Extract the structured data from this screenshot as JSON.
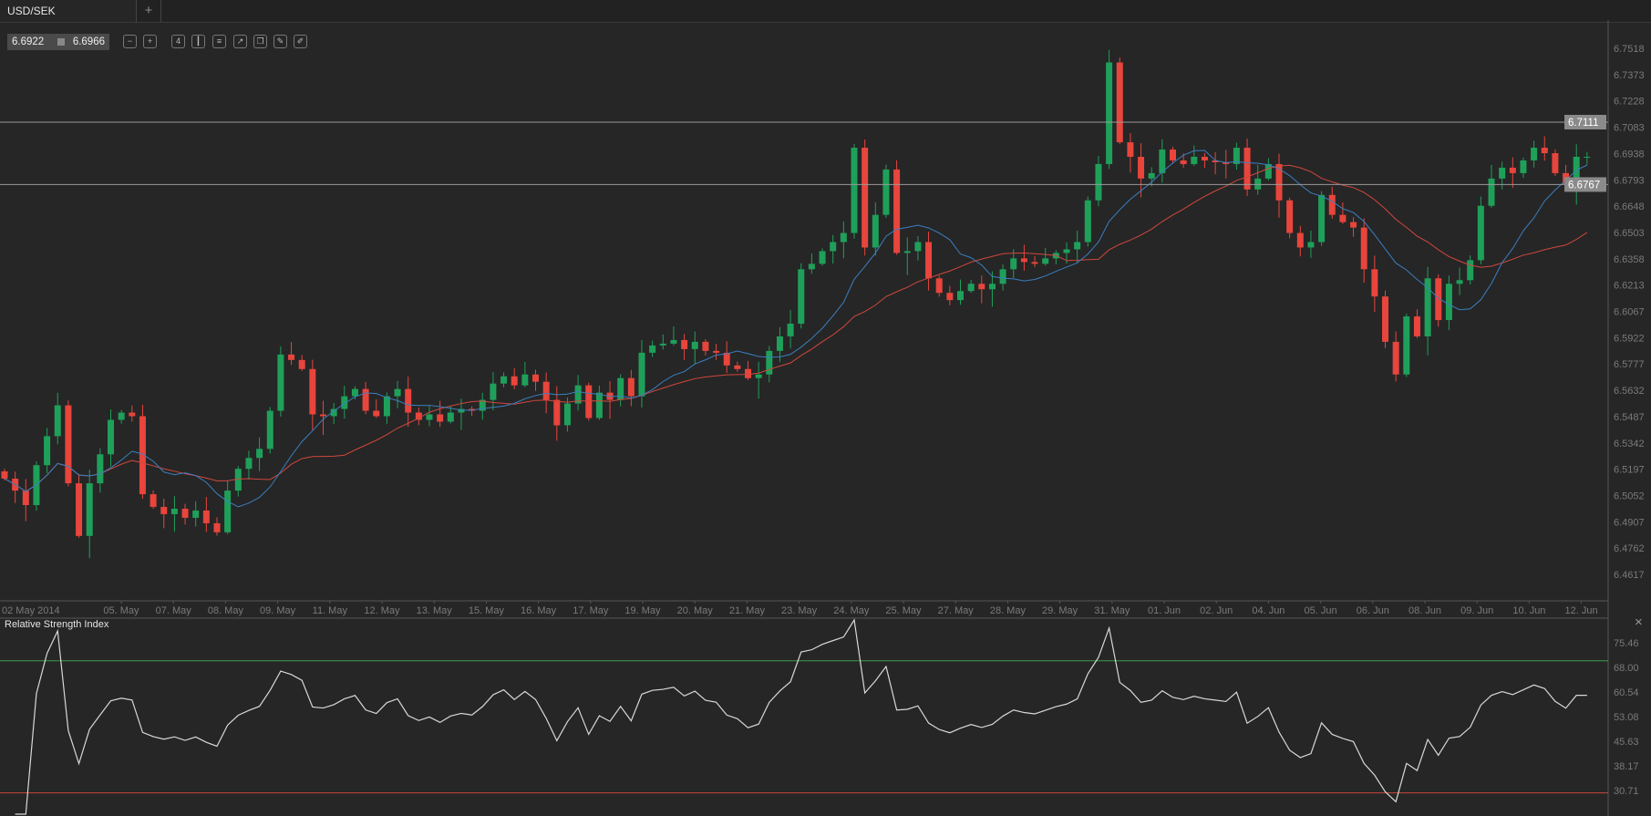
{
  "tabs": {
    "active": "USD/SEK",
    "add": "+"
  },
  "quote": {
    "bid": "6.6922",
    "ask": "6.6966"
  },
  "toolbar": [
    {
      "name": "zoom-out-icon",
      "glyph": "−"
    },
    {
      "name": "zoom-in-icon",
      "glyph": "+"
    },
    {
      "name": "timeframe-4h-button",
      "glyph": "4"
    },
    {
      "name": "chart-type-candles-icon",
      "glyph": "┃"
    },
    {
      "name": "indicators-settings-icon",
      "glyph": "≡"
    },
    {
      "name": "chart-image-icon",
      "glyph": "↗"
    },
    {
      "name": "copy-icon",
      "glyph": "❐"
    },
    {
      "name": "edit-icon",
      "glyph": "✎"
    },
    {
      "name": "draw-icon",
      "glyph": "✐"
    }
  ],
  "colors": {
    "up": "#1fa05a",
    "down": "#e8453c",
    "ma_fast": "#3a7fc0",
    "ma_slow": "#d0473d",
    "bg": "#262626",
    "rsi_upper": "#3e9a4e",
    "rsi_lower": "#c8473c"
  },
  "chart_data": {
    "type": "candlestick",
    "symbol": "USD/SEK",
    "timeframe": "4H",
    "close": [
      6.5146,
      6.508,
      6.5,
      6.522,
      6.538,
      6.555,
      6.512,
      6.483,
      6.512,
      6.528,
      6.547,
      6.551,
      6.549,
      6.506,
      6.499,
      6.495,
      6.498,
      6.493,
      6.497,
      6.49,
      6.485,
      6.508,
      6.52,
      6.526,
      6.531,
      6.552,
      6.583,
      6.58,
      6.575,
      6.55,
      6.549,
      6.553,
      6.56,
      6.564,
      6.552,
      6.549,
      6.56,
      6.564,
      6.551,
      6.547,
      6.55,
      6.546,
      6.551,
      6.553,
      6.552,
      6.558,
      6.567,
      6.571,
      6.566,
      6.572,
      6.568,
      6.558,
      6.544,
      6.556,
      6.566,
      6.548,
      6.562,
      6.558,
      6.57,
      6.56,
      6.584,
      6.588,
      6.589,
      6.591,
      6.586,
      6.59,
      6.585,
      6.584,
      6.577,
      6.575,
      6.57,
      6.572,
      6.585,
      6.593,
      6.6,
      6.63,
      6.633,
      6.64,
      6.645,
      6.65,
      6.697,
      6.642,
      6.66,
      6.685,
      6.639,
      6.64,
      6.645,
      6.625,
      6.617,
      6.613,
      6.618,
      6.622,
      6.619,
      6.622,
      6.63,
      6.636,
      6.634,
      6.633,
      6.636,
      6.639,
      6.641,
      6.645,
      6.668,
      6.688,
      6.744,
      6.7,
      6.692,
      6.68,
      6.683,
      6.696,
      6.69,
      6.688,
      6.692,
      6.69,
      6.689,
      6.688,
      6.697,
      6.674,
      6.68,
      6.688,
      6.668,
      6.65,
      6.642,
      6.645,
      6.671,
      6.66,
      6.656,
      6.653,
      6.63,
      6.615,
      6.59,
      6.572,
      6.604,
      6.593,
      6.625,
      6.602,
      6.622,
      6.624,
      6.635,
      6.665,
      6.68,
      6.686,
      6.683,
      6.69,
      6.697,
      6.694,
      6.683,
      6.677,
      6.692,
      6.692
    ],
    "y_ticks": [
      "6.7518",
      "6.7373",
      "6.7228",
      "6.7083",
      "6.6938",
      "6.6793",
      "6.6648",
      "6.6503",
      "6.6358",
      "6.6213",
      "6.6067",
      "6.5922",
      "6.5777",
      "6.5632",
      "6.5487",
      "6.5342",
      "6.5197",
      "6.5052",
      "6.4907",
      "6.4762",
      "6.4617"
    ],
    "ylim": [
      6.44,
      6.76
    ],
    "x_ticks": [
      "02 May 2014",
      "05. May",
      "07. May",
      "08. May",
      "09. May",
      "11. May",
      "12. May",
      "13. May",
      "15. May",
      "16. May",
      "17. May",
      "19. May",
      "20. May",
      "21. May",
      "23. May",
      "24. May",
      "25. May",
      "27. May",
      "28. May",
      "29. May",
      "31. May",
      "01. Jun",
      "02. Jun",
      "04. Jun",
      "05. Jun",
      "06. Jun",
      "08. Jun",
      "09. Jun",
      "10. Jun",
      "12. Jun"
    ],
    "hlines": [
      {
        "value": "6.7111"
      },
      {
        "value": "6.6767"
      }
    ],
    "ma_periods": [
      10,
      20
    ],
    "rsi": {
      "title": "Relative Strength Index",
      "period": 14,
      "y_ticks": [
        "75.46",
        "68.00",
        "60.54",
        "53.08",
        "45.63",
        "38.17",
        "30.71"
      ],
      "upper": 70,
      "lower": 30
    }
  }
}
